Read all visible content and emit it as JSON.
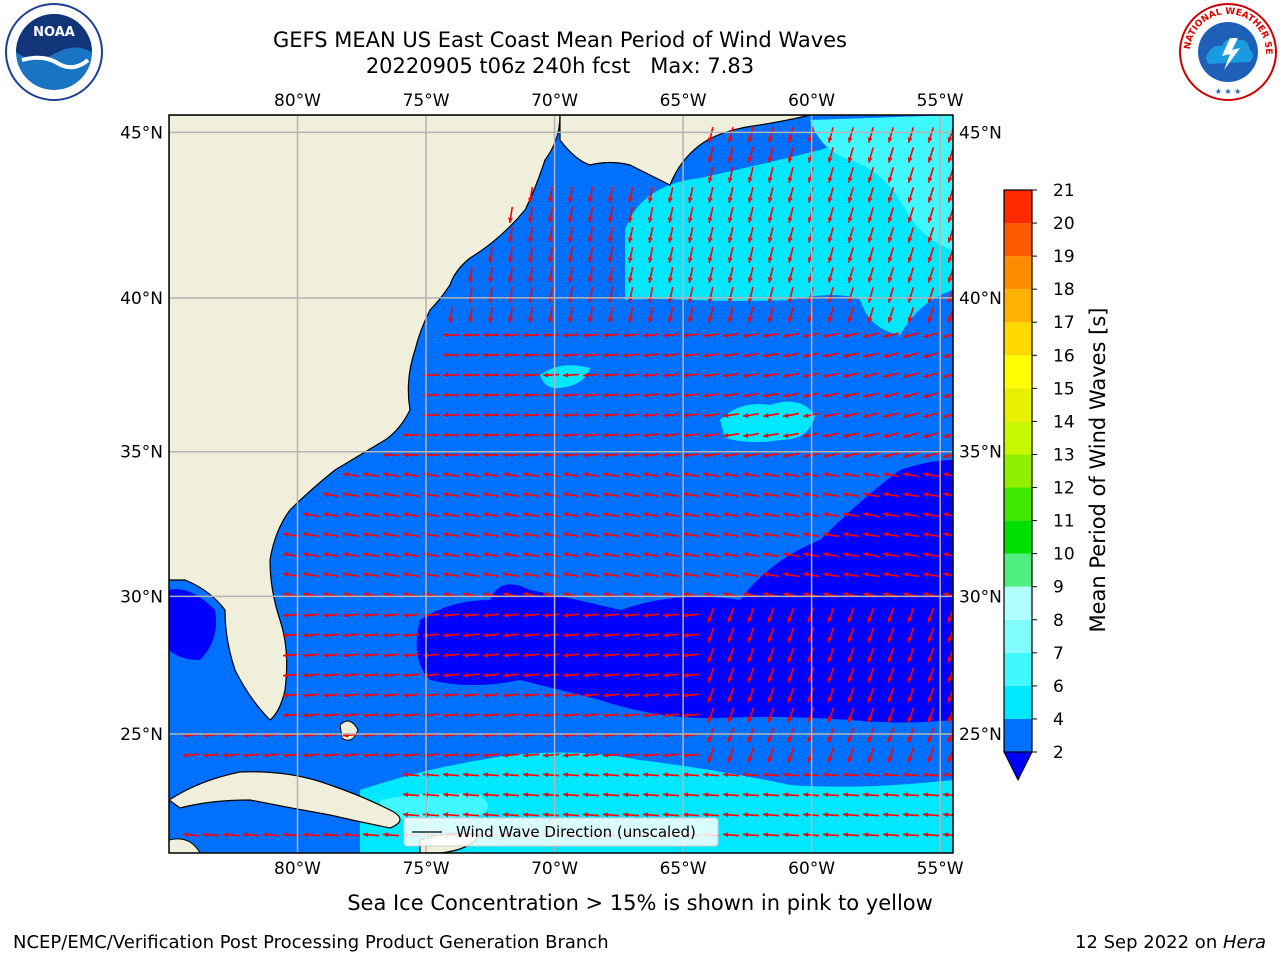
{
  "header": {
    "title_line1": "GEFS MEAN US East Coast Mean Period of Wind Waves",
    "title_line2": "20220905 t06z 240h fcst   Max: 7.83",
    "left_logo": "noaa-logo",
    "right_logo": "nws-logo",
    "left_logo_text": "NOAA",
    "right_logo_text": "NATIONAL WEATHER SERVICE"
  },
  "map": {
    "lon_ticks": [
      "80°W",
      "75°W",
      "70°W",
      "65°W",
      "60°W",
      "55°W"
    ],
    "lat_ticks": [
      "45°N",
      "40°N",
      "35°N",
      "30°N",
      "25°N"
    ],
    "lon_range": [
      -85,
      -54.5
    ],
    "lat_range": [
      20.5,
      45.5
    ],
    "legend_label": "Wind Wave Direction (unscaled)",
    "land_color": "#efefdc",
    "grid_color": "#b4b4b4",
    "arrow_color": "#ff0000"
  },
  "colorbar": {
    "label": "Mean Period of Wind Waves [s]",
    "tick_labels": [
      "2",
      "4",
      "6",
      "7",
      "8",
      "9",
      "10",
      "11",
      "12",
      "13",
      "14",
      "15",
      "16",
      "17",
      "18",
      "19",
      "20",
      "21"
    ],
    "colors": [
      "#0070ff",
      "#00e8ff",
      "#40f8ff",
      "#80fcff",
      "#b0ffff",
      "#50f080",
      "#00e000",
      "#40e800",
      "#90f000",
      "#c8f800",
      "#e8f000",
      "#ffff00",
      "#ffd800",
      "#ffb000",
      "#ff8c00",
      "#ff5a00",
      "#ff2a00",
      "#ff0000"
    ],
    "extend_color": "#0000ff"
  },
  "footer": {
    "subtitle": "Sea Ice Concentration > 15% is shown in pink to yellow",
    "credit": "NCEP/EMC/Verification Post Processing Product Generation Branch",
    "date_prefix": "12 Sep 2022 on ",
    "host": "Hera"
  }
}
